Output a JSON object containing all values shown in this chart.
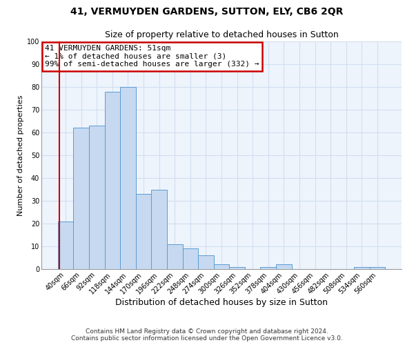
{
  "title_line1": "41, VERMUYDEN GARDENS, SUTTON, ELY, CB6 2QR",
  "title_line2": "Size of property relative to detached houses in Sutton",
  "xlabel": "Distribution of detached houses by size in Sutton",
  "ylabel": "Number of detached properties",
  "bar_labels": [
    "40sqm",
    "66sqm",
    "92sqm",
    "118sqm",
    "144sqm",
    "170sqm",
    "196sqm",
    "222sqm",
    "248sqm",
    "274sqm",
    "300sqm",
    "326sqm",
    "352sqm",
    "378sqm",
    "404sqm",
    "430sqm",
    "456sqm",
    "482sqm",
    "508sqm",
    "534sqm",
    "560sqm"
  ],
  "bar_values": [
    21,
    62,
    63,
    78,
    80,
    33,
    35,
    11,
    9,
    6,
    2,
    1,
    0,
    1,
    2,
    0,
    0,
    0,
    0,
    1,
    1
  ],
  "bar_color": "#c6d9f0",
  "bar_edge_color": "#5b9bd5",
  "annotation_box_text": "41 VERMUYDEN GARDENS: 51sqm\n← 1% of detached houses are smaller (3)\n99% of semi-detached houses are larger (332) →",
  "annotation_box_color": "#ffffff",
  "annotation_box_edge_color": "#cc0000",
  "red_line_x": -0.42,
  "ylim": [
    0,
    100
  ],
  "yticks": [
    0,
    10,
    20,
    30,
    40,
    50,
    60,
    70,
    80,
    90,
    100
  ],
  "grid_color": "#d0dff0",
  "footer_line1": "Contains HM Land Registry data © Crown copyright and database right 2024.",
  "footer_line2": "Contains public sector information licensed under the Open Government Licence v3.0.",
  "bg_color": "#ffffff",
  "plot_bg_color": "#eef4fc",
  "title_fontsize": 10,
  "subtitle_fontsize": 9,
  "xlabel_fontsize": 9,
  "ylabel_fontsize": 8,
  "tick_fontsize": 7,
  "annotation_fontsize": 8,
  "footer_fontsize": 6.5
}
